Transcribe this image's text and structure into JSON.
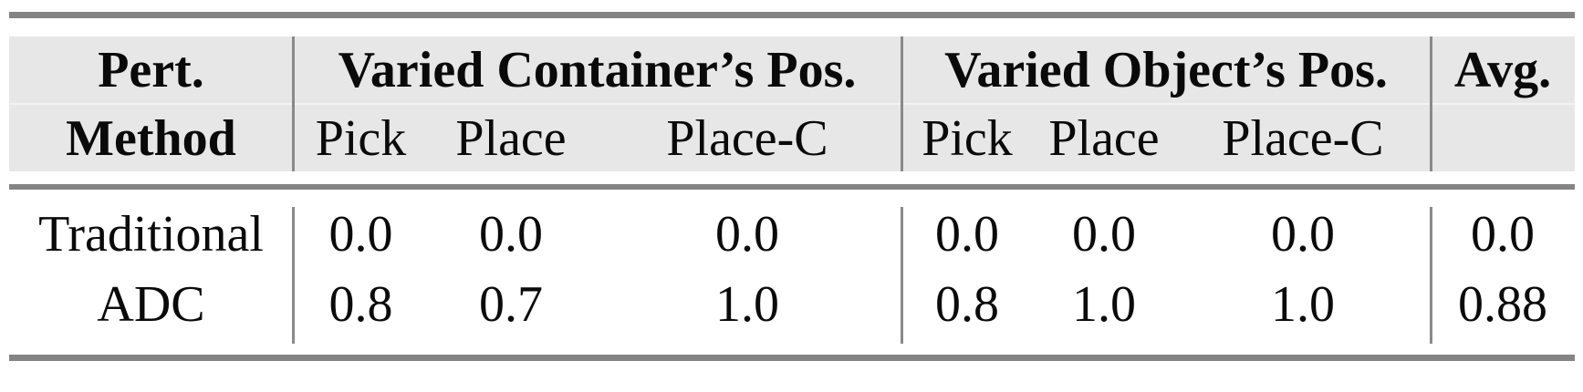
{
  "table": {
    "header": {
      "col1_line1": "Pert.",
      "col1_line2": "Method",
      "group1_label": "Varied Container’s Pos.",
      "group2_label": "Varied Object’s Pos.",
      "avg_label": "Avg.",
      "subcols_group1": [
        "Pick",
        "Place",
        "Place-C"
      ],
      "subcols_group2": [
        "Pick",
        "Place",
        "Place-C"
      ]
    },
    "rows": [
      {
        "method": "Traditional",
        "group1": [
          "0.0",
          "0.0",
          "0.0"
        ],
        "group2": [
          "0.0",
          "0.0",
          "0.0"
        ],
        "avg": "0.0"
      },
      {
        "method": "ADC",
        "group1": [
          "0.8",
          "0.7",
          "1.0"
        ],
        "group2": [
          "0.8",
          "1.0",
          "1.0"
        ],
        "avg": "0.88"
      }
    ],
    "colors": {
      "header_background": "#e7e7e7",
      "rule": "#848484",
      "divider": "#8a8a8a",
      "text": "#0a0a0a"
    }
  },
  "chart_data": {
    "type": "table",
    "title": "",
    "columns": [
      "Pert. Method",
      "Varied Container’s Pos. Pick",
      "Varied Container’s Pos. Place",
      "Varied Container’s Pos. Place-C",
      "Varied Object’s Pos. Pick",
      "Varied Object’s Pos. Place",
      "Varied Object’s Pos. Place-C",
      "Avg."
    ],
    "rows": [
      [
        "Traditional",
        0.0,
        0.0,
        0.0,
        0.0,
        0.0,
        0.0,
        0.0
      ],
      [
        "ADC",
        0.8,
        0.7,
        1.0,
        0.8,
        1.0,
        1.0,
        0.88
      ]
    ]
  }
}
